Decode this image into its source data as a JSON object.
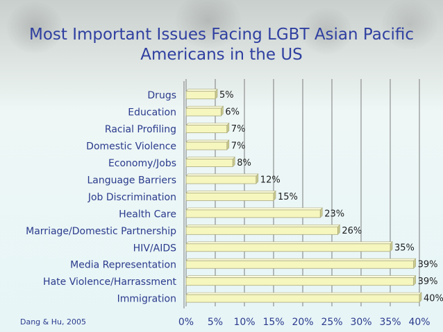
{
  "chart_data": {
    "type": "bar",
    "orientation": "horizontal",
    "title": "Most Important Issues Facing LGBT Asian Pacific Americans in the US",
    "title_lines": [
      "Most Important Issues Facing LGBT Asian Pacific",
      "Americans in the US"
    ],
    "categories": [
      "Drugs",
      "Education",
      "Racial Profiling",
      "Domestic Violence",
      "Economy/Jobs",
      "Language Barriers",
      "Job Discrimination",
      "Health Care",
      "Marriage/Domestic Partnership",
      "HIV/AIDS",
      "Media Representation",
      "Hate Violence/Harrassment",
      "Immigration"
    ],
    "values": [
      5,
      6,
      7,
      7,
      8,
      12,
      15,
      23,
      26,
      35,
      39,
      39,
      40
    ],
    "value_labels": [
      "5%",
      "6%",
      "7%",
      "7%",
      "8%",
      "12%",
      "15%",
      "23%",
      "26%",
      "35%",
      "39%",
      "39%",
      "40%"
    ],
    "xlim": [
      0,
      40
    ],
    "ticks": [
      0,
      5,
      10,
      15,
      20,
      25,
      30,
      35,
      40
    ],
    "tick_labels": [
      "0%",
      "5%",
      "10%",
      "15%",
      "20%",
      "25%",
      "30%",
      "35%",
      "40%"
    ],
    "grid": true,
    "colors": {
      "bar": "#f6f6bf",
      "bar_edge": "#a8a87a",
      "grid": "#7a7a7a",
      "text": "#2a3a8c",
      "title": "#2f3fa0"
    }
  },
  "source": "Dang & Hu, 2005"
}
